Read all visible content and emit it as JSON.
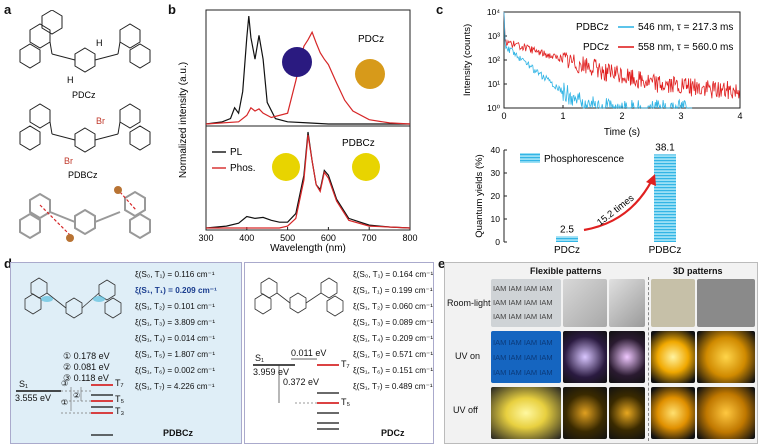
{
  "panels": {
    "a": {
      "letter": "a",
      "molecule1": "PDCz",
      "molecule2": "PDBCz",
      "atom_H": "H",
      "atom_Br": "Br"
    },
    "b": {
      "letter": "b",
      "ylabel": "Normalized intensity (a.u.)",
      "xlabel": "Wavelength (nm)",
      "top_label": "PDCz",
      "bottom_label": "PDBCz",
      "legend_pl": "PL",
      "legend_phos": "Phos.",
      "colors": {
        "pl": "#111111",
        "phos": "#d62728"
      }
    },
    "c": {
      "letter": "c",
      "ylabel_top": "Intensity (counts)",
      "xlabel_top": "Time (s)",
      "legend_pdbcz_name": "PDBCz",
      "legend_pdbcz_value": "546 nm, τ = 217.3 ms",
      "legend_pdcz_name": "PDCz",
      "legend_pdcz_value": "558 nm, τ = 560.0 ms",
      "ylabel_bottom": "Quantum yields (%)",
      "legend_bar": "Phosphorescence",
      "bar_label_pdcz": "2.5",
      "bar_label_pdbcz": "38.1",
      "arrow_label": "15.2 times",
      "cat_pdcz": "PDCz",
      "cat_pdbcz": "PDBCz",
      "colors": {
        "blue": "#33b5e5",
        "red": "#e02020"
      }
    },
    "d": {
      "letter": "d",
      "left": {
        "name": "PDBCz",
        "s1_label": "S₁",
        "s1_energy": "3.555 eV",
        "gaps": [
          "① 0.178 eV",
          "② 0.081 eV",
          "③ 0.118 eV"
        ],
        "circ": [
          "①",
          "②",
          "③"
        ],
        "t7": "T₇",
        "t5": "T₅",
        "t3": "T₃",
        "xi": [
          "ξ(S₀, T₁) = 0.116 cm⁻¹",
          "ξ(S₁, T₁) = 0.209 cm⁻¹",
          "ξ(S₁, T₂) = 0.101 cm⁻¹",
          "ξ(S₁, T₃) = 3.809 cm⁻¹",
          "ξ(S₁, T₄) = 0.014 cm⁻¹",
          "ξ(S₁, T₅) = 1.807 cm⁻¹",
          "ξ(S₁, T₆) = 0.002 cm⁻¹",
          "ξ(S₁, T₇) = 4.226 cm⁻¹"
        ]
      },
      "right": {
        "name": "PDCz",
        "s1_label": "S₁",
        "s1_energy": "3.959 eV",
        "gap1": "0.011 eV",
        "gap2": "0.372 eV",
        "t7": "T₇",
        "t5": "T₅",
        "xi": [
          "ξ(S₀, T₁) = 0.164 cm⁻¹",
          "ξ(S₁, T₁) = 0.199 cm⁻¹",
          "ξ(S₁, T₂) = 0.060 cm⁻¹",
          "ξ(S₁, T₃) = 0.089 cm⁻¹",
          "ξ(S₁, T₄) = 0.209 cm⁻¹",
          "ξ(S₁, T₅) = 0.571 cm⁻¹",
          "ξ(S₁, T₆) = 0.151 cm⁻¹",
          "ξ(S₁, T₇) = 0.489 cm⁻¹"
        ]
      }
    },
    "e": {
      "letter": "e",
      "header_flexible": "Flexible patterns",
      "header_3d": "3D patterns",
      "row_room": "Room-light",
      "row_uv_on": "UV on",
      "row_uv_off": "UV off",
      "iam_rows": [
        "IAM IAM IAM IAM",
        "IAM IAM IAM IAM",
        "IAM IAM IAM IAM"
      ]
    }
  },
  "chart_data": [
    {
      "type": "line",
      "title": "",
      "xlabel": "Wavelength (nm)",
      "ylabel": "Normalized intensity (a.u.)",
      "xlim": [
        300,
        800
      ],
      "xticks": [
        "300",
        "400",
        "500",
        "600",
        "700",
        "800"
      ],
      "subplots": [
        {
          "label": "PDCz",
          "series": [
            {
              "name": "PL",
              "x": [
                300,
                340,
                360,
                370,
                380,
                390,
                400,
                405,
                410,
                420,
                430,
                440,
                450,
                470,
                500,
                550,
                600,
                800
              ],
              "y": [
                0,
                0.02,
                0.05,
                0.15,
                0.1,
                0.3,
                0.8,
                1.0,
                0.8,
                0.6,
                0.82,
                0.6,
                0.2,
                0.05,
                0.02,
                0.01,
                0,
                0
              ]
            },
            {
              "name": "Phos.",
              "x": [
                300,
                380,
                400,
                410,
                420,
                430,
                440,
                460,
                500,
                520,
                540,
                550,
                560,
                570,
                580,
                590,
                600,
                620,
                640,
                660,
                700,
                750,
                800
              ],
              "y": [
                0,
                0.02,
                0.08,
                0.15,
                0.12,
                0.14,
                0.1,
                0.06,
                0.1,
                0.4,
                0.72,
                0.78,
                0.85,
                0.75,
                0.66,
                0.6,
                0.55,
                0.38,
                0.22,
                0.12,
                0.04,
                0.01,
                0
              ]
            }
          ]
        },
        {
          "label": "PDBCz",
          "series": [
            {
              "name": "PL",
              "x": [
                300,
                350,
                380,
                400,
                420,
                440,
                460,
                480,
                500,
                520,
                540,
                550,
                560,
                570,
                580,
                590,
                600,
                620,
                650,
                700,
                750,
                800
              ],
              "y": [
                0,
                0.02,
                0.05,
                0.12,
                0.1,
                0.11,
                0.08,
                0.06,
                0.06,
                0.15,
                0.55,
                1.0,
                0.7,
                0.45,
                0.4,
                0.6,
                0.55,
                0.3,
                0.1,
                0.03,
                0.01,
                0
              ]
            },
            {
              "name": "Phos.",
              "x": [
                300,
                480,
                500,
                520,
                540,
                550,
                560,
                570,
                580,
                590,
                600,
                620,
                650,
                700,
                800
              ],
              "y": [
                0,
                0,
                0.02,
                0.1,
                0.5,
                0.97,
                0.7,
                0.45,
                0.38,
                0.58,
                0.52,
                0.28,
                0.08,
                0.02,
                0
              ]
            }
          ]
        }
      ]
    },
    {
      "type": "line",
      "title": "",
      "xlabel": "Time (s)",
      "ylabel": "Intensity (counts)",
      "xlim": [
        0,
        4
      ],
      "ylim_log10": [
        0,
        4
      ],
      "xticks": [
        "0",
        "1",
        "2",
        "3",
        "4"
      ],
      "yticks": [
        "10⁰",
        "10¹",
        "10²",
        "10³",
        "10⁴"
      ],
      "series": [
        {
          "name": "PDBCz 546 nm, τ = 217.3 ms",
          "tau_s": 0.2173
        },
        {
          "name": "PDCz 558 nm, τ = 560.0 ms",
          "tau_s": 0.56
        }
      ]
    },
    {
      "type": "bar",
      "title": "",
      "ylabel": "Quantum yields (%)",
      "categories": [
        "PDCz",
        "PDBCz"
      ],
      "values": [
        2.5,
        38.1
      ],
      "ylim": [
        0,
        40
      ],
      "yticks": [
        "0",
        "10",
        "20",
        "30",
        "40"
      ],
      "legend": "Phosphorescence",
      "annotation": "15.2 times"
    }
  ]
}
